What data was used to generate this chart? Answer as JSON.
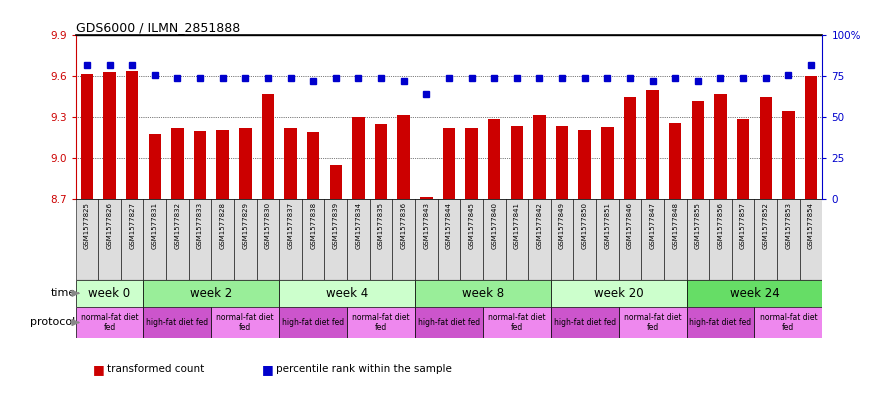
{
  "title": "GDS6000 / ILMN_2851888",
  "samples": [
    "GSM1577825",
    "GSM1577826",
    "GSM1577827",
    "GSM1577831",
    "GSM1577832",
    "GSM1577833",
    "GSM1577828",
    "GSM1577829",
    "GSM1577830",
    "GSM1577837",
    "GSM1577838",
    "GSM1577839",
    "GSM1577834",
    "GSM1577835",
    "GSM1577836",
    "GSM1577843",
    "GSM1577844",
    "GSM1577845",
    "GSM1577840",
    "GSM1577841",
    "GSM1577842",
    "GSM1577849",
    "GSM1577850",
    "GSM1577851",
    "GSM1577846",
    "GSM1577847",
    "GSM1577848",
    "GSM1577855",
    "GSM1577856",
    "GSM1577857",
    "GSM1577852",
    "GSM1577853",
    "GSM1577854"
  ],
  "bar_values": [
    9.62,
    9.63,
    9.64,
    9.18,
    9.22,
    9.2,
    9.21,
    9.22,
    9.47,
    9.22,
    9.19,
    8.95,
    9.3,
    9.25,
    9.32,
    8.72,
    9.22,
    9.22,
    9.29,
    9.24,
    9.32,
    9.24,
    9.21,
    9.23,
    9.45,
    9.5,
    9.26,
    9.42,
    9.47,
    9.29,
    9.45,
    9.35,
    9.6
  ],
  "percentile_values": [
    82,
    82,
    82,
    76,
    74,
    74,
    74,
    74,
    74,
    74,
    72,
    74,
    74,
    74,
    72,
    64,
    74,
    74,
    74,
    74,
    74,
    74,
    74,
    74,
    74,
    72,
    74,
    72,
    74,
    74,
    74,
    76,
    82
  ],
  "ylim_left": [
    8.7,
    9.9
  ],
  "ylim_right": [
    0,
    100
  ],
  "yticks_left": [
    8.7,
    9.0,
    9.3,
    9.6,
    9.9
  ],
  "yticks_right": [
    0,
    25,
    50,
    75,
    100
  ],
  "bar_color": "#cc0000",
  "dot_color": "#0000cc",
  "time_groups": [
    {
      "label": "week 0",
      "start": 0,
      "end": 3,
      "color": "#ccffcc"
    },
    {
      "label": "week 2",
      "start": 3,
      "end": 9,
      "color": "#99ee99"
    },
    {
      "label": "week 4",
      "start": 9,
      "end": 15,
      "color": "#ccffcc"
    },
    {
      "label": "week 8",
      "start": 15,
      "end": 21,
      "color": "#99ee99"
    },
    {
      "label": "week 20",
      "start": 21,
      "end": 27,
      "color": "#ccffcc"
    },
    {
      "label": "week 24",
      "start": 27,
      "end": 33,
      "color": "#66dd66"
    }
  ],
  "protocol_groups": [
    {
      "label": "normal-fat diet\nfed",
      "start": 0,
      "end": 3,
      "color": "#ee88ee"
    },
    {
      "label": "high-fat diet fed",
      "start": 3,
      "end": 6,
      "color": "#cc55cc"
    },
    {
      "label": "normal-fat diet\nfed",
      "start": 6,
      "end": 9,
      "color": "#ee88ee"
    },
    {
      "label": "high-fat diet fed",
      "start": 9,
      "end": 12,
      "color": "#cc55cc"
    },
    {
      "label": "normal-fat diet\nfed",
      "start": 12,
      "end": 15,
      "color": "#ee88ee"
    },
    {
      "label": "high-fat diet fed",
      "start": 15,
      "end": 18,
      "color": "#cc55cc"
    },
    {
      "label": "normal-fat diet\nfed",
      "start": 18,
      "end": 21,
      "color": "#ee88ee"
    },
    {
      "label": "high-fat diet fed",
      "start": 21,
      "end": 24,
      "color": "#cc55cc"
    },
    {
      "label": "normal-fat diet\nfed",
      "start": 24,
      "end": 27,
      "color": "#ee88ee"
    },
    {
      "label": "high-fat diet fed",
      "start": 27,
      "end": 30,
      "color": "#cc55cc"
    },
    {
      "label": "normal-fat diet\nfed",
      "start": 30,
      "end": 33,
      "color": "#ee88ee"
    }
  ],
  "grid_values": [
    9.0,
    9.3,
    9.6
  ],
  "background_color": "#ffffff",
  "tick_bg_color": "#dddddd"
}
